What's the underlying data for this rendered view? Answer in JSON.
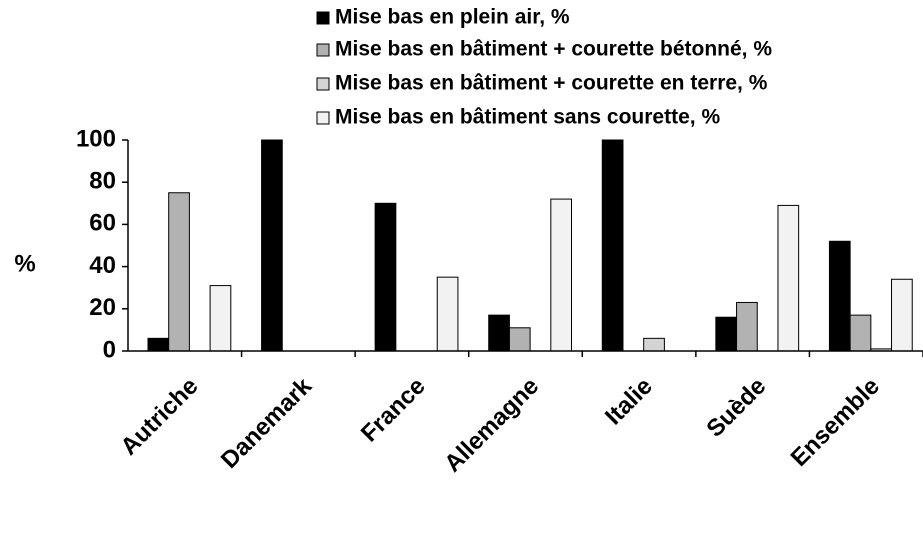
{
  "chart_data": {
    "type": "bar",
    "ylabel": "%",
    "categories": [
      "Autriche",
      "Danemark",
      "France",
      "Allemagne",
      "Italie",
      "Suède",
      "Ensemble"
    ],
    "series": [
      {
        "name": "Mise bas en plein air, %",
        "color": "#000000",
        "values": [
          6,
          100,
          70,
          17,
          100,
          16,
          52
        ]
      },
      {
        "name": "Mise bas en bâtiment + courette bétonné, %",
        "color": "#b2b2b2",
        "values": [
          75,
          0,
          0,
          11,
          0,
          23,
          17
        ]
      },
      {
        "name": "Mise bas en bâtiment + courette en terre, %",
        "color": "#d4d4d4",
        "values": [
          0,
          0,
          0,
          0,
          6,
          0,
          1
        ]
      },
      {
        "name": "Mise bas en bâtiment sans courette, %",
        "color": "#f2f2f2",
        "values": [
          31,
          0,
          35,
          72,
          0,
          69,
          34
        ]
      }
    ],
    "ylim": [
      0,
      100
    ],
    "yticks": [
      0,
      20,
      40,
      60,
      80,
      100
    ]
  }
}
